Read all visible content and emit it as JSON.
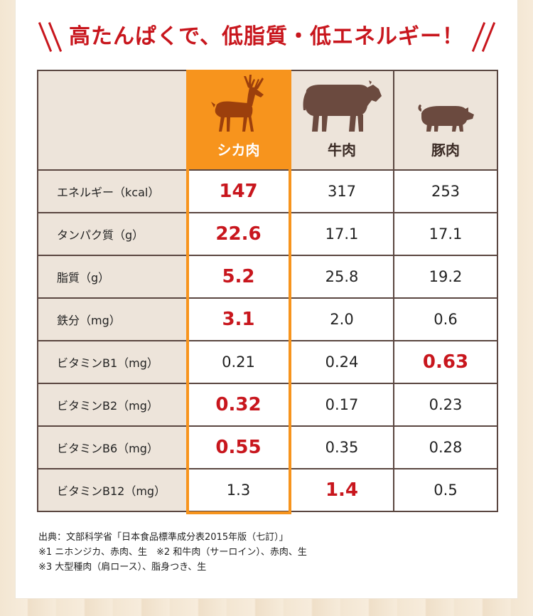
{
  "title": "高たんぱくで、低脂質・低エネルギー！",
  "table": {
    "columns": [
      {
        "label": "シカ肉",
        "icon": "deer-icon"
      },
      {
        "label": "牛肉",
        "icon": "cow-icon"
      },
      {
        "label": "豚肉",
        "icon": "pig-icon"
      }
    ],
    "rows": [
      {
        "label": "エネルギー（kcal）",
        "values": [
          "147",
          "317",
          "253"
        ],
        "highlight": [
          0
        ]
      },
      {
        "label": "タンパク質（g）",
        "values": [
          "22.6",
          "17.1",
          "17.1"
        ],
        "highlight": [
          0
        ]
      },
      {
        "label": "脂質（g）",
        "values": [
          "5.2",
          "25.8",
          "19.2"
        ],
        "highlight": [
          0
        ]
      },
      {
        "label": "鉄分（mg）",
        "values": [
          "3.1",
          "2.0",
          "0.6"
        ],
        "highlight": [
          0
        ]
      },
      {
        "label": "ビタミンB1（mg）",
        "values": [
          "0.21",
          "0.24",
          "0.63"
        ],
        "highlight": [
          2
        ]
      },
      {
        "label": "ビタミンB2（mg）",
        "values": [
          "0.32",
          "0.17",
          "0.23"
        ],
        "highlight": [
          0
        ]
      },
      {
        "label": "ビタミンB6（mg）",
        "values": [
          "0.55",
          "0.35",
          "0.28"
        ],
        "highlight": [
          0
        ]
      },
      {
        "label": "ビタミンB12（mg）",
        "values": [
          "1.3",
          "1.4",
          "0.5"
        ],
        "highlight": [
          1
        ]
      }
    ]
  },
  "notes": [
    "出典：文部科学省「日本食品標準成分表2015年版（七訂）」",
    "※1 ニホンジカ、赤肉、生　※2 和牛肉（サーロイン）、赤肉、生",
    "※3 大型種肉（肩ロース）、脂身つき、生"
  ],
  "colors": {
    "accent_red": "#c8161d",
    "deer_orange": "#f7941d",
    "animal_brown": "#6b4a3f",
    "label_bg": "#ede4da"
  }
}
